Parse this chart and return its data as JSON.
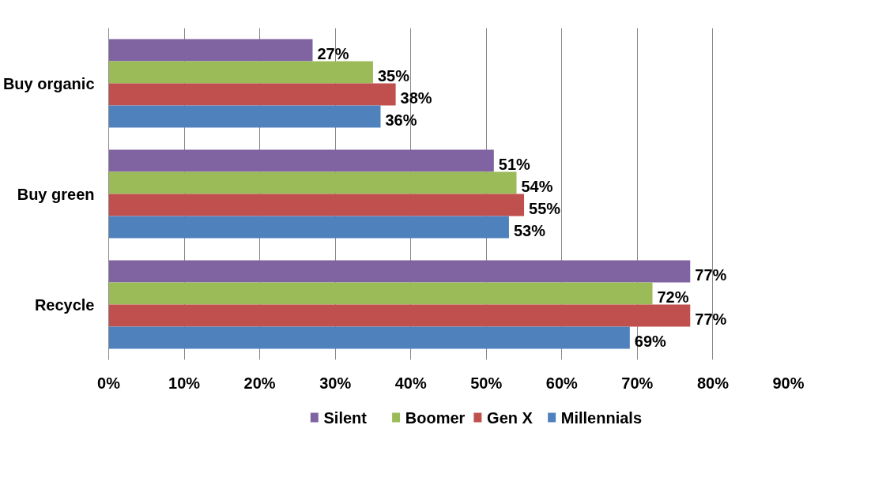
{
  "chart_data": {
    "type": "bar",
    "orientation": "horizontal",
    "categories": [
      "Buy organic",
      "Buy green",
      "Recycle"
    ],
    "series": [
      {
        "name": "Silent",
        "color": "#8064a2",
        "values": [
          27,
          51,
          77
        ],
        "value_labels": [
          "27%",
          "51%",
          "77%"
        ]
      },
      {
        "name": "Boomer",
        "color": "#9bbb59",
        "values": [
          35,
          54,
          72
        ],
        "value_labels": [
          "35%",
          "54%",
          "72%"
        ]
      },
      {
        "name": "Gen X",
        "color": "#c0504d",
        "values": [
          38,
          55,
          77
        ],
        "value_labels": [
          "38%",
          "55%",
          "77%"
        ]
      },
      {
        "name": "Millennials",
        "color": "#4f81bd",
        "values": [
          36,
          53,
          69
        ],
        "value_labels": [
          "36%",
          "53%",
          "69%"
        ]
      }
    ],
    "xlim": [
      0,
      90
    ],
    "xticks": [
      {
        "value": 0,
        "label": "0%"
      },
      {
        "value": 10,
        "label": "10%"
      },
      {
        "value": 20,
        "label": "20%"
      },
      {
        "value": 30,
        "label": "30%"
      },
      {
        "value": 40,
        "label": "40%"
      },
      {
        "value": 50,
        "label": "50%"
      },
      {
        "value": 60,
        "label": "60%"
      },
      {
        "value": 70,
        "label": "70%"
      },
      {
        "value": 80,
        "label": "80%"
      },
      {
        "value": 90,
        "label": "90%"
      }
    ],
    "grid": "x",
    "legend": "bottom"
  }
}
